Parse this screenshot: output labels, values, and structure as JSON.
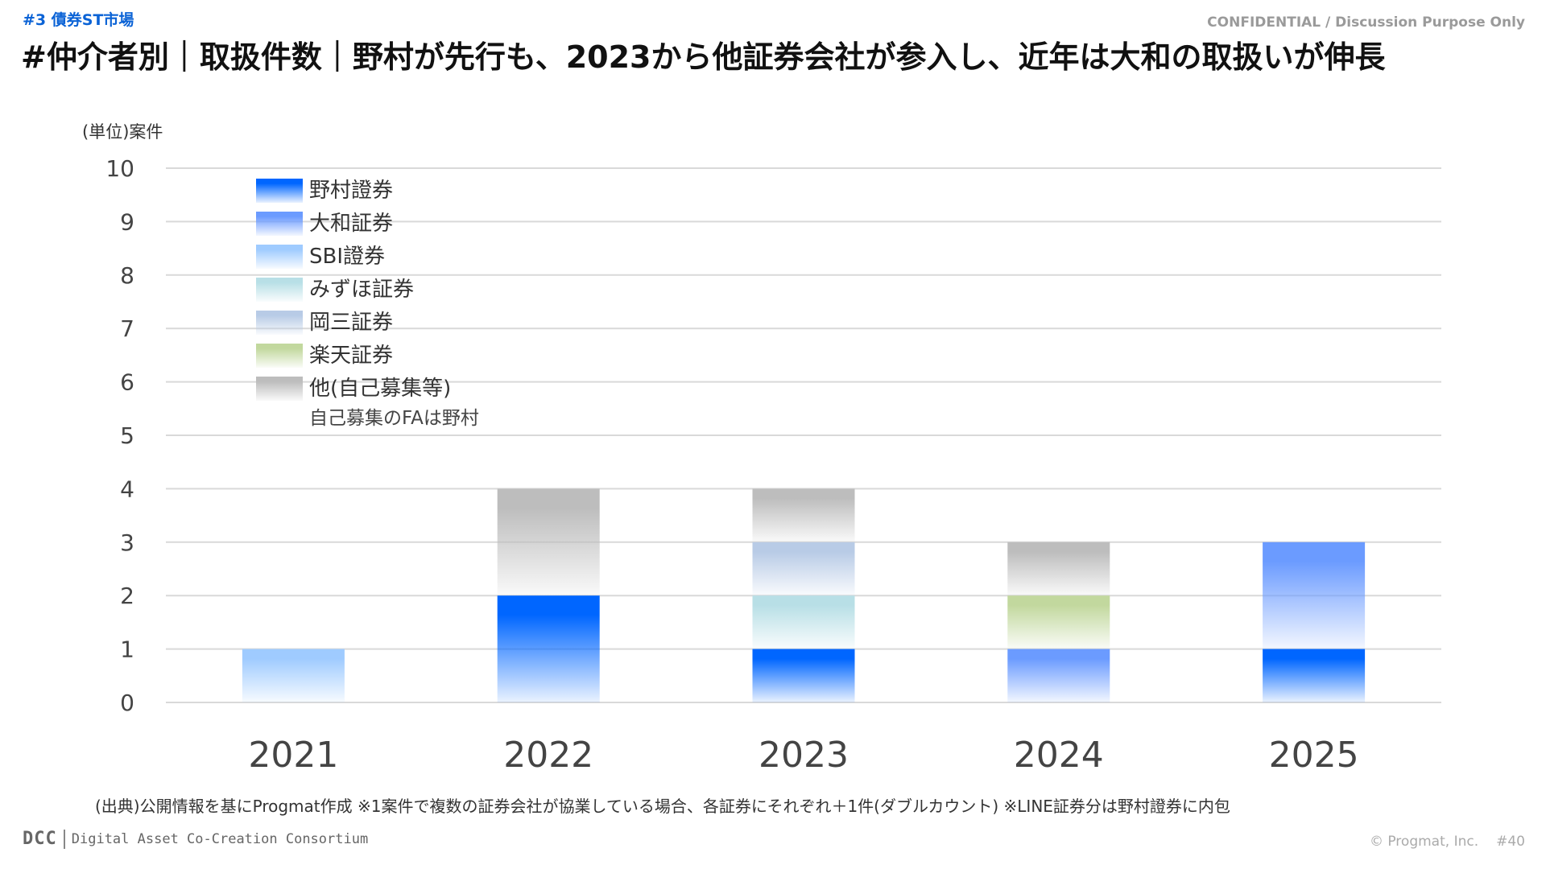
{
  "header": {
    "section_tag": "#3 債券ST市場",
    "confidential": "CONFIDENTIAL / Discussion Purpose Only",
    "title": "#仲介者別｜取扱件数｜野村が先行も、2023から他証券会社が参入し、近年は大和の取扱いが伸長"
  },
  "chart_data": {
    "type": "bar",
    "stacked": true,
    "title": "#仲介者別｜取扱件数｜野村が先行も、2023から他証券会社が参入し、近年は大和の取扱いが伸長",
    "ylabel": "(単位)案件",
    "xlabel": "",
    "ylim": [
      0,
      10
    ],
    "yticks": [
      0,
      1,
      2,
      3,
      4,
      5,
      6,
      7,
      8,
      9,
      10
    ],
    "grid": true,
    "legend_position": "top-left",
    "categories": [
      "2021",
      "2022",
      "2023",
      "2024",
      "2025"
    ],
    "series": [
      {
        "name": "野村證券",
        "color": "#0066ff",
        "values": [
          0,
          2,
          1,
          0,
          1
        ]
      },
      {
        "name": "大和証券",
        "color": "#6b9bff",
        "values": [
          0,
          0,
          0,
          1,
          2
        ]
      },
      {
        "name": "SBI證券",
        "color": "#9fcbff",
        "values": [
          1,
          0,
          0,
          0,
          0
        ]
      },
      {
        "name": "みずほ証券",
        "color": "#b8dfe6",
        "values": [
          0,
          0,
          1,
          0,
          0
        ]
      },
      {
        "name": "岡三証券",
        "color": "#b8cbe6",
        "values": [
          0,
          0,
          1,
          0,
          0
        ]
      },
      {
        "name": "楽天証券",
        "color": "#c2d89e",
        "values": [
          0,
          0,
          0,
          1,
          0
        ]
      },
      {
        "name": "他(自己募集等)",
        "color": "#bdbdbd",
        "values": [
          0,
          2,
          1,
          1,
          0
        ]
      }
    ],
    "legend_note": "自己募集のFAは野村"
  },
  "footer": {
    "source_note": "(出典)公開情報を基にProgmat作成 ※1案件で複数の証券会社が協業している場合、各証券にそれぞれ＋1件(ダブルカウント) ※LINE証券分は野村證券に内包",
    "logo_mark": "DCC",
    "logo_name": "Digital Asset Co-Creation Consortium",
    "copyright": "© Progmat, Inc.",
    "page_number": "#40"
  }
}
